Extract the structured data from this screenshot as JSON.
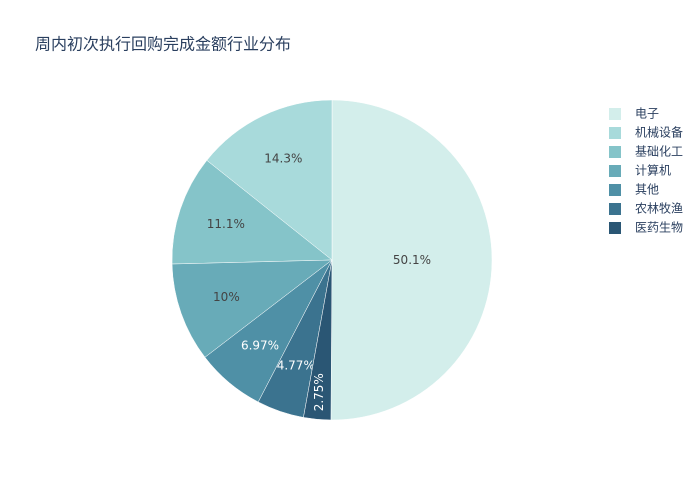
{
  "chart_data": {
    "type": "pie",
    "title": "周内初次执行回购完成金额行业分布",
    "categories": [
      "电子",
      "机械设备",
      "基础化工",
      "计算机",
      "其他",
      "农林牧渔",
      "医药生物"
    ],
    "values": [
      50.1,
      14.3,
      11.1,
      10,
      6.97,
      4.77,
      2.75
    ],
    "value_labels": [
      "50.1%",
      "14.3%",
      "11.1%",
      "10%",
      "6.97%",
      "4.77%",
      "2.75%"
    ],
    "colors": [
      "#d3eeeb",
      "#a8dadb",
      "#85c4c9",
      "#68abb8",
      "#4f90a6",
      "#3b738f",
      "#2a5674"
    ],
    "legend": "top-right"
  }
}
